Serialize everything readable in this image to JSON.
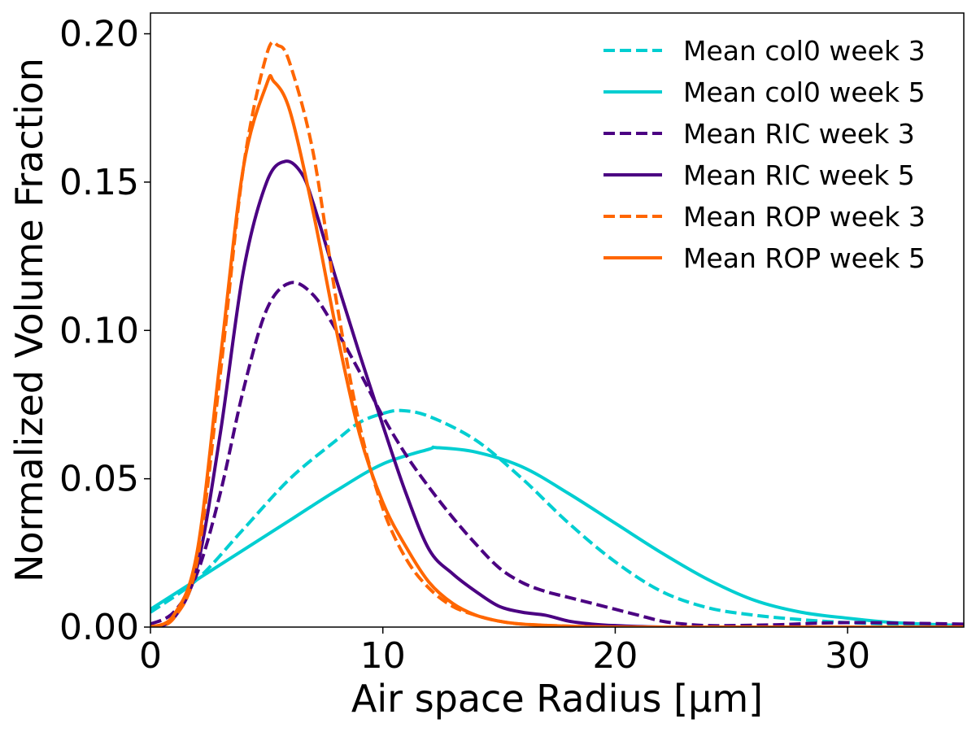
{
  "chart_data": {
    "type": "line",
    "title": "",
    "xlabel": "Air space Radius [μm]",
    "ylabel": "Normalized Volume Fraction",
    "xlim": [
      0,
      35
    ],
    "ylim": [
      0,
      0.207
    ],
    "xticks": [
      0,
      10,
      20,
      30
    ],
    "xtick_labels": [
      "0",
      "10",
      "20",
      "30"
    ],
    "yticks": [
      0,
      0.05,
      0.1,
      0.15,
      0.2
    ],
    "ytick_labels": [
      "0.00",
      "0.05",
      "0.10",
      "0.15",
      "0.20"
    ],
    "grid": false,
    "legend_position": "top-right",
    "series": [
      {
        "name": "Mean col0 week 3",
        "color": "#00CED1",
        "dash": "dashed",
        "x": [
          0,
          2,
          4,
          6,
          8,
          9,
          10,
          10.8,
          12,
          14,
          16,
          18,
          20,
          22,
          24,
          26,
          28,
          30,
          32,
          35
        ],
        "y": [
          0.005,
          0.016,
          0.033,
          0.05,
          0.063,
          0.069,
          0.072,
          0.073,
          0.071,
          0.063,
          0.05,
          0.035,
          0.022,
          0.012,
          0.0065,
          0.004,
          0.0025,
          0.0015,
          0.001,
          0.0005
        ]
      },
      {
        "name": "Mean col0 week 5",
        "color": "#00CED1",
        "dash": "solid",
        "x": [
          0,
          2,
          4,
          6,
          8,
          10,
          12,
          12.3,
          14,
          16,
          18,
          20,
          22,
          24,
          26,
          28,
          30,
          32,
          34,
          35
        ],
        "y": [
          0.006,
          0.016,
          0.026,
          0.036,
          0.046,
          0.055,
          0.06,
          0.0605,
          0.059,
          0.054,
          0.045,
          0.035,
          0.025,
          0.016,
          0.009,
          0.005,
          0.003,
          0.0015,
          0.0008,
          0.0005
        ]
      },
      {
        "name": "Mean RIC week 3",
        "color": "#4B0082",
        "dash": "dashed",
        "x": [
          0,
          1,
          2,
          3,
          4,
          5,
          6,
          7,
          8,
          9,
          10,
          11,
          12,
          13,
          14,
          15,
          16,
          17,
          18,
          19,
          20,
          21,
          22,
          23,
          24,
          25,
          27,
          30,
          35
        ],
        "y": [
          0.001,
          0.005,
          0.018,
          0.045,
          0.08,
          0.107,
          0.116,
          0.112,
          0.1,
          0.086,
          0.071,
          0.058,
          0.047,
          0.037,
          0.028,
          0.02,
          0.015,
          0.012,
          0.01,
          0.008,
          0.006,
          0.004,
          0.002,
          0.001,
          0.0005,
          0.0005,
          0.0008,
          0.0015,
          0.001
        ]
      },
      {
        "name": "Mean RIC week 5",
        "color": "#4B0082",
        "dash": "solid",
        "x": [
          0,
          1,
          2,
          3,
          4,
          5,
          5.8,
          6.5,
          7,
          8,
          9,
          10,
          11,
          12,
          13,
          14,
          15,
          16,
          17,
          18,
          19,
          20,
          22,
          25,
          35
        ],
        "y": [
          0.0,
          0.003,
          0.02,
          0.065,
          0.12,
          0.15,
          0.157,
          0.153,
          0.143,
          0.117,
          0.092,
          0.068,
          0.045,
          0.026,
          0.018,
          0.012,
          0.007,
          0.005,
          0.004,
          0.002,
          0.001,
          0.0005,
          0.0,
          0.0,
          0.0
        ]
      },
      {
        "name": "Mean ROP week 3",
        "color": "#FF6600",
        "dash": "dashed",
        "x": [
          0,
          1,
          2,
          3,
          4,
          5,
          5.5,
          6,
          7,
          8,
          9,
          10,
          11,
          12,
          13,
          14,
          15,
          16,
          18,
          20,
          25,
          35
        ],
        "y": [
          0.0,
          0.003,
          0.022,
          0.085,
          0.155,
          0.193,
          0.196,
          0.19,
          0.16,
          0.11,
          0.068,
          0.04,
          0.023,
          0.013,
          0.007,
          0.004,
          0.002,
          0.001,
          0.0003,
          0.0,
          0.0,
          0.0
        ]
      },
      {
        "name": "Mean ROP week 5",
        "color": "#FF6600",
        "dash": "solid",
        "x": [
          0,
          1,
          2,
          3,
          4,
          5,
          5.3,
          6,
          7,
          8,
          9,
          10,
          11,
          12,
          13,
          14,
          15,
          16,
          18,
          20,
          25,
          35
        ],
        "y": [
          0.0,
          0.004,
          0.025,
          0.09,
          0.155,
          0.183,
          0.184,
          0.174,
          0.14,
          0.1,
          0.065,
          0.042,
          0.027,
          0.015,
          0.008,
          0.004,
          0.002,
          0.001,
          0.0003,
          0.0,
          0.0,
          0.0
        ]
      }
    ]
  }
}
